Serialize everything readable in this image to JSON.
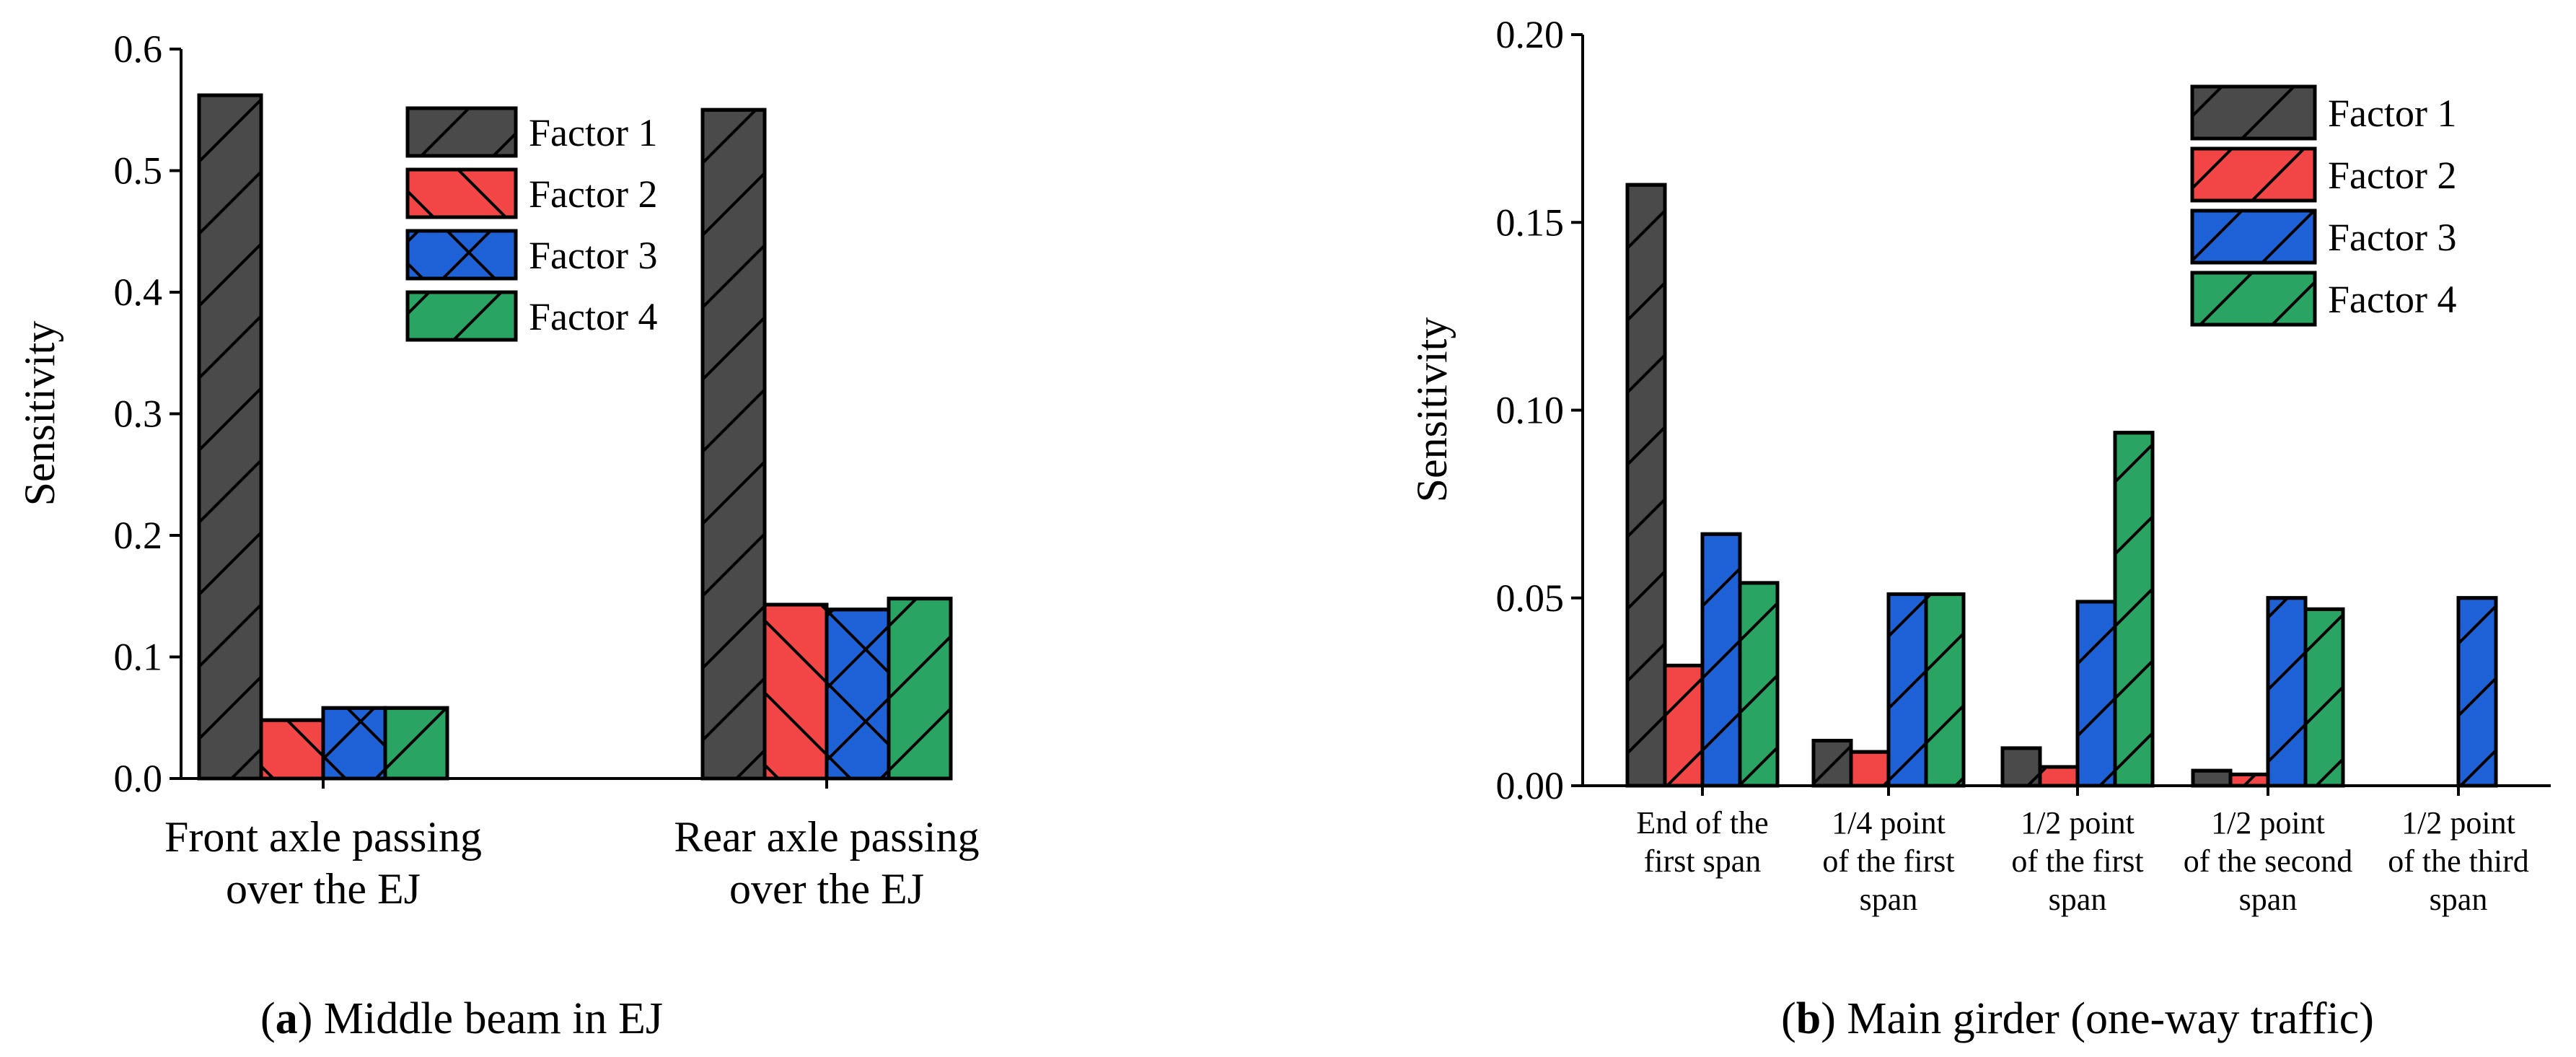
{
  "colors": {
    "factor1": "#4a4a4a",
    "factor2": "#f24545",
    "factor3": "#1f62d8",
    "factor4": "#2aa463",
    "hatch": "#000000"
  },
  "chart_data": [
    {
      "type": "bar",
      "panel_letter": "a",
      "title": "Middle beam in EJ",
      "xlabel": "",
      "ylabel": "Sensitivity",
      "ylim": [
        0,
        0.6
      ],
      "yticks": [
        0.0,
        0.1,
        0.2,
        0.3,
        0.4,
        0.5,
        0.6
      ],
      "ytick_labels": [
        "0.0",
        "0.1",
        "0.2",
        "0.3",
        "0.4",
        "0.5",
        "0.6"
      ],
      "categories": [
        [
          "Front axle passing",
          "over the EJ"
        ],
        [
          "Rear axle passing",
          "over the EJ"
        ]
      ],
      "legend_position": "top-right",
      "series": [
        {
          "name": "Factor 1",
          "color": "#4a4a4a",
          "hatch": "forward",
          "values": [
            0.562,
            0.55
          ]
        },
        {
          "name": "Factor 2",
          "color": "#f24545",
          "hatch": "backward",
          "values": [
            0.048,
            0.143
          ]
        },
        {
          "name": "Factor 3",
          "color": "#1f62d8",
          "hatch": "cross",
          "values": [
            0.058,
            0.139
          ]
        },
        {
          "name": "Factor 4",
          "color": "#2aa463",
          "hatch": "forward",
          "values": [
            0.058,
            0.148
          ]
        }
      ]
    },
    {
      "type": "bar",
      "panel_letter": "b",
      "title": "Main girder (one-way traffic)",
      "xlabel": "",
      "ylabel": "Sensitivity",
      "ylim": [
        0,
        0.2
      ],
      "yticks": [
        0.0,
        0.05,
        0.1,
        0.15,
        0.2
      ],
      "ytick_labels": [
        "0.00",
        "0.05",
        "0.10",
        "0.15",
        "0.20"
      ],
      "categories": [
        [
          "End of the",
          "first span"
        ],
        [
          "1/4 point",
          "of the first",
          "span"
        ],
        [
          "1/2 point",
          "of the first",
          "span"
        ],
        [
          "1/2 point",
          "of the second",
          "span"
        ],
        [
          "1/2 point",
          "of the third",
          "span"
        ]
      ],
      "legend_position": "top-right",
      "series": [
        {
          "name": "Factor 1",
          "color": "#4a4a4a",
          "hatch": "forward",
          "values": [
            0.16,
            0.012,
            0.01,
            0.004,
            0.0
          ]
        },
        {
          "name": "Factor 2",
          "color": "#f24545",
          "hatch": "forward",
          "values": [
            0.032,
            0.009,
            0.005,
            0.003,
            0.0
          ]
        },
        {
          "name": "Factor 3",
          "color": "#1f62d8",
          "hatch": "forward",
          "values": [
            0.067,
            0.051,
            0.049,
            0.05,
            0.05
          ]
        },
        {
          "name": "Factor 4",
          "color": "#2aa463",
          "hatch": "forward",
          "values": [
            0.054,
            0.051,
            0.094,
            0.047,
            0.0
          ]
        }
      ]
    }
  ]
}
